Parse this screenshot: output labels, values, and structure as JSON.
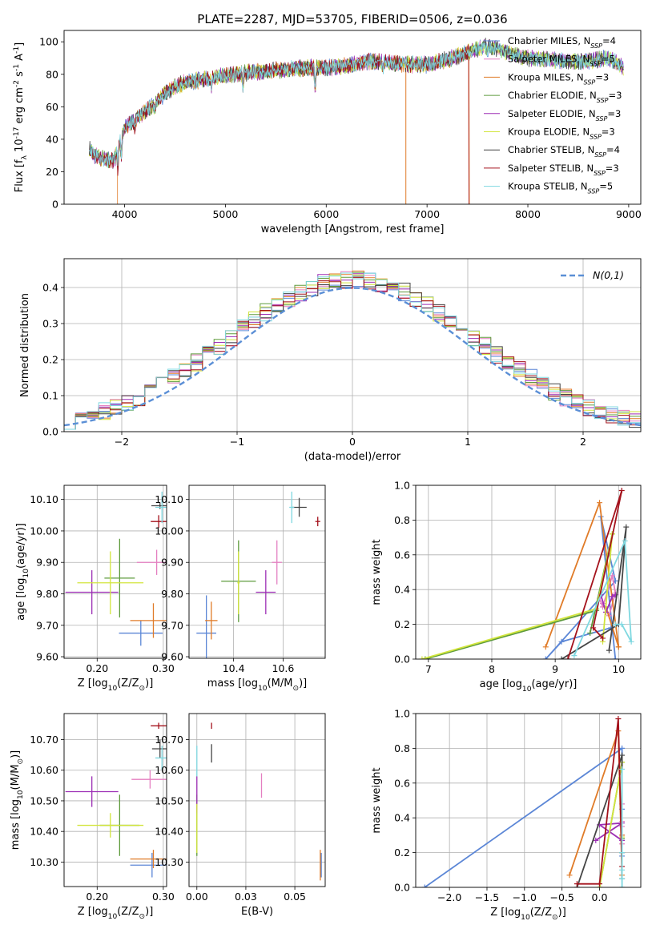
{
  "figure": {
    "title": "PLATE=2287, MJD=53705, FIBERID=0506, z=0.036"
  },
  "colors": {
    "Chabrier MILES": "#5b86d6",
    "Salpeter MILES": "#e47fc1",
    "Kroupa MILES": "#e07b28",
    "Chabrier ELODIE": "#5e9b3c",
    "Salpeter ELODIE": "#9d2fb5",
    "Kroupa ELODIE": "#d2e53c",
    "Chabrier STELIB": "#454545",
    "Salpeter STELIB": "#a4121c",
    "Kroupa STELIB": "#7fd8e0",
    "normal": "#5b8fd6"
  },
  "chart_data": [
    {
      "id": "spectrum",
      "type": "line",
      "xlabel": "wavelength [Angstrom, rest frame]",
      "ylabel": "Flux [f_λ 10^-17 erg cm^-2 s^-1 A^-1]",
      "xlim": [
        3400,
        9120
      ],
      "ylim": [
        0,
        107
      ],
      "xticks": [
        4000,
        5000,
        6000,
        7000,
        8000,
        9000
      ],
      "yticks": [
        0,
        20,
        40,
        60,
        80,
        100
      ],
      "grid": false,
      "legend_position": "upper right",
      "continuum": {
        "x": [
          3650,
          3700,
          3800,
          3900,
          3950,
          4000,
          4100,
          4200,
          4300,
          4400,
          4500,
          4600,
          4800,
          5000,
          5200,
          5400,
          5600,
          5800,
          6000,
          6200,
          6400,
          6600,
          6800,
          7000,
          7200,
          7400,
          7600,
          7800,
          8000,
          8200,
          8400,
          8600,
          8800,
          8950
        ],
        "y": [
          35,
          30,
          28,
          27,
          38,
          47,
          52,
          57,
          62,
          68,
          72,
          75,
          77,
          79,
          81,
          82,
          83,
          84,
          84,
          85,
          88,
          87,
          86,
          86,
          89,
          93,
          98,
          93,
          90,
          89,
          88,
          88,
          90,
          84
        ]
      },
      "series": [
        {
          "name": "Chabrier MILES, N_SSP=4",
          "label_base": "Chabrier MILES, N",
          "sub": "SSP",
          "label_tail": "=4",
          "color_key": "Chabrier MILES"
        },
        {
          "name": "Salpeter MILES, N_SSP=5",
          "label_base": "Salpeter MILES, N",
          "sub": "SSP",
          "label_tail": "=5",
          "color_key": "Salpeter MILES"
        },
        {
          "name": "Kroupa MILES, N_SSP=3",
          "label_base": "Kroupa MILES, N",
          "sub": "SSP",
          "label_tail": "=3",
          "color_key": "Kroupa MILES"
        },
        {
          "name": "Chabrier ELODIE, N_SSP=3",
          "label_base": "Chabrier ELODIE, N",
          "sub": "SSP",
          "label_tail": "=3",
          "color_key": "Chabrier ELODIE"
        },
        {
          "name": "Salpeter ELODIE, N_SSP=3",
          "label_base": "Salpeter ELODIE, N",
          "sub": "SSP",
          "label_tail": "=3",
          "color_key": "Salpeter ELODIE"
        },
        {
          "name": "Kroupa ELODIE, N_SSP=3",
          "label_base": "Kroupa ELODIE, N",
          "sub": "SSP",
          "label_tail": "=3",
          "color_key": "Kroupa ELODIE"
        },
        {
          "name": "Chabrier STELIB, N_SSP=4",
          "label_base": "Chabrier STELIB, N",
          "sub": "SSP",
          "label_tail": "=4",
          "color_key": "Chabrier STELIB"
        },
        {
          "name": "Salpeter STELIB, N_SSP=3",
          "label_base": "Salpeter STELIB, N",
          "sub": "SSP",
          "label_tail": "=3",
          "color_key": "Salpeter STELIB"
        },
        {
          "name": "Kroupa STELIB, N_SSP=5",
          "label_base": "Kroupa STELIB, N",
          "sub": "SSP",
          "label_tail": "=5",
          "color_key": "Kroupa STELIB"
        }
      ],
      "range_ends": [
        {
          "color_key": "Kroupa MILES",
          "start": 3930,
          "end": 7420,
          "sharp_drop_at": [
            6790
          ]
        },
        {
          "color_key": "Salpeter STELIB",
          "start": 3650,
          "end": 7415,
          "sharp_drop_at": []
        },
        {
          "color_key": "Chabrier STELIB",
          "start": 3650,
          "end": 8950,
          "sharp_drop_at": []
        }
      ]
    },
    {
      "id": "residuals",
      "type": "histogram",
      "xlabel": "(data-model)/error",
      "ylabel": "Normed distribution",
      "xlim": [
        -2.5,
        2.5
      ],
      "ylim": [
        0,
        0.48
      ],
      "xticks": [
        -2,
        -1,
        0,
        1,
        2
      ],
      "yticks": [
        0.0,
        0.1,
        0.2,
        0.3,
        0.4
      ],
      "grid": true,
      "legend_position": "upper right",
      "reference_label": "N(0,1)",
      "bin_width": 0.1,
      "series_keys": [
        "Chabrier MILES",
        "Salpeter MILES",
        "Kroupa MILES",
        "Chabrier ELODIE",
        "Salpeter ELODIE",
        "Kroupa ELODIE",
        "Chabrier STELIB",
        "Salpeter STELIB",
        "Kroupa STELIB"
      ]
    },
    {
      "id": "age-vs-Z",
      "type": "scatter",
      "xlabel": "Z [log10(Z/Z⊙)]",
      "ylabel": "age  [log10(age/yr)]",
      "xlim": [
        0.15,
        0.305
      ],
      "ylim": [
        9.595,
        10.145
      ],
      "xticks": [
        0.2,
        0.3
      ],
      "yticks": [
        9.6,
        9.7,
        9.8,
        9.9,
        10.0,
        10.1
      ],
      "grid": true,
      "points": [
        {
          "color_key": "Chabrier MILES",
          "x": 0.266,
          "y": 9.675,
          "xerr": 0.033,
          "yerr": 0.04
        },
        {
          "color_key": "Salpeter MILES",
          "x": 0.29,
          "y": 9.9,
          "xerr": 0.03,
          "yerr": 0.04
        },
        {
          "color_key": "Kroupa MILES",
          "x": 0.285,
          "y": 9.715,
          "xerr": 0.035,
          "yerr": 0.055
        },
        {
          "color_key": "Chabrier ELODIE",
          "x": 0.234,
          "y": 9.85,
          "xerr": 0.023,
          "yerr": 0.125
        },
        {
          "color_key": "Salpeter ELODIE",
          "x": 0.192,
          "y": 9.805,
          "xerr": 0.04,
          "yerr": 0.07
        },
        {
          "color_key": "Kroupa ELODIE",
          "x": 0.22,
          "y": 9.835,
          "xerr": 0.05,
          "yerr": 0.1
        },
        {
          "color_key": "Chabrier STELIB",
          "x": 0.295,
          "y": 10.08,
          "xerr": 0.013,
          "yerr": 0.01
        },
        {
          "color_key": "Salpeter STELIB",
          "x": 0.293,
          "y": 10.03,
          "xerr": 0.012,
          "yerr": 0.02
        },
        {
          "color_key": "Kroupa STELIB",
          "x": 0.298,
          "y": 10.075,
          "xerr": 0.01,
          "yerr": 0.05
        }
      ]
    },
    {
      "id": "age-vs-mass",
      "type": "scatter",
      "xlabel": "mass [log10(M/M⊙)]",
      "ylabel": "",
      "xlim": [
        10.22,
        10.77
      ],
      "ylim": [
        9.595,
        10.145
      ],
      "xticks": [
        10.4,
        10.6
      ],
      "yticks": [
        9.6,
        9.7,
        9.8,
        9.9,
        10.0,
        10.1
      ],
      "grid": true,
      "points": [
        {
          "color_key": "Chabrier MILES",
          "x": 10.29,
          "y": 9.675,
          "xerr": 0.04,
          "yerr": 0.12
        },
        {
          "color_key": "Salpeter MILES",
          "x": 10.575,
          "y": 9.9,
          "xerr": 0.02,
          "yerr": 0.07
        },
        {
          "color_key": "Kroupa MILES",
          "x": 10.31,
          "y": 9.715,
          "xerr": 0.025,
          "yerr": 0.06
        },
        {
          "color_key": "Chabrier ELODIE",
          "x": 10.42,
          "y": 9.84,
          "xerr": 0.07,
          "yerr": 0.13
        },
        {
          "color_key": "Salpeter ELODIE",
          "x": 10.53,
          "y": 9.805,
          "xerr": 0.04,
          "yerr": 0.07
        },
        {
          "color_key": "Kroupa ELODIE",
          "x": 10.42,
          "y": 9.835,
          "xerr": 0.005,
          "yerr": 0.1
        },
        {
          "color_key": "Chabrier STELIB",
          "x": 10.665,
          "y": 10.075,
          "xerr": 0.03,
          "yerr": 0.03
        },
        {
          "color_key": "Salpeter STELIB",
          "x": 10.74,
          "y": 10.03,
          "xerr": 0.01,
          "yerr": 0.015
        },
        {
          "color_key": "Kroupa STELIB",
          "x": 10.635,
          "y": 10.075,
          "xerr": 0.01,
          "yerr": 0.05
        }
      ]
    },
    {
      "id": "weight-vs-age",
      "type": "line",
      "xlabel": "age  [log10(age/yr)]",
      "ylabel": "mass weight",
      "xlim": [
        6.8,
        10.35
      ],
      "ylim": [
        0,
        1.0
      ],
      "xticks": [
        7,
        8,
        9,
        10
      ],
      "yticks": [
        0.0,
        0.2,
        0.4,
        0.6,
        0.8,
        1.0
      ],
      "grid": true,
      "series": [
        {
          "color_key": "Chabrier MILES",
          "x": [
            9.95,
            9.72,
            9.95,
            8.85,
            9.1,
            9.88
          ],
          "y": [
            0.0,
            0.82,
            0.45,
            0.0,
            0.1,
            0.18
          ]
        },
        {
          "color_key": "Salpeter MILES",
          "x": [
            9.7,
            9.75,
            9.9,
            9.95,
            9.85,
            9.75
          ],
          "y": [
            0.35,
            0.3,
            0.48,
            0.38,
            0.25,
            0.32
          ]
        },
        {
          "color_key": "Kroupa MILES",
          "x": [
            8.85,
            9.7,
            10.0,
            10.0,
            9.8
          ],
          "y": [
            0.07,
            0.9,
            0.07,
            0.07,
            0.3
          ]
        },
        {
          "color_key": "Chabrier ELODIE",
          "x": [
            6.95,
            9.65,
            9.9,
            9.55
          ],
          "y": [
            0.0,
            0.28,
            0.72,
            0.15
          ]
        },
        {
          "color_key": "Salpeter ELODIE",
          "x": [
            9.72,
            9.8,
            9.9,
            9.95
          ],
          "y": [
            0.37,
            0.27,
            0.36,
            0.37
          ]
        },
        {
          "color_key": "Kroupa ELODIE",
          "x": [
            6.9,
            9.65,
            9.9,
            9.75
          ],
          "y": [
            0.0,
            0.29,
            0.72,
            0.1
          ]
        },
        {
          "color_key": "Chabrier STELIB",
          "x": [
            9.1,
            10.0,
            10.12,
            9.85
          ],
          "y": [
            0.0,
            0.2,
            0.76,
            0.05
          ]
        },
        {
          "color_key": "Salpeter STELIB",
          "x": [
            9.2,
            10.05,
            9.6,
            9.75
          ],
          "y": [
            0.0,
            0.97,
            0.18,
            0.12
          ]
        },
        {
          "color_key": "Kroupa STELIB",
          "x": [
            9.3,
            10.1,
            10.2,
            10.05,
            9.95
          ],
          "y": [
            0.02,
            0.68,
            0.1,
            0.2,
            0.2
          ]
        }
      ]
    },
    {
      "id": "mass-vs-Z",
      "type": "scatter",
      "xlabel": "Z [log10(Z/Z⊙)]",
      "ylabel": "mass [log10(M/M⊙)]",
      "xlim": [
        0.15,
        0.305
      ],
      "ylim": [
        10.22,
        10.785
      ],
      "xticks": [
        0.2,
        0.3
      ],
      "yticks": [
        10.3,
        10.4,
        10.5,
        10.6,
        10.7
      ],
      "grid": true,
      "points": [
        {
          "color_key": "Chabrier MILES",
          "x": 0.283,
          "y": 10.29,
          "xerr": 0.033,
          "yerr": 0.04
        },
        {
          "color_key": "Salpeter MILES",
          "x": 0.28,
          "y": 10.57,
          "xerr": 0.028,
          "yerr": 0.03
        },
        {
          "color_key": "Kroupa MILES",
          "x": 0.285,
          "y": 10.31,
          "xerr": 0.035,
          "yerr": 0.03
        },
        {
          "color_key": "Chabrier ELODIE",
          "x": 0.234,
          "y": 10.42,
          "xerr": 0.03,
          "yerr": 0.1
        },
        {
          "color_key": "Salpeter ELODIE",
          "x": 0.192,
          "y": 10.53,
          "xerr": 0.04,
          "yerr": 0.05
        },
        {
          "color_key": "Kroupa ELODIE",
          "x": 0.22,
          "y": 10.42,
          "xerr": 0.05,
          "yerr": 0.04
        },
        {
          "color_key": "Chabrier STELIB",
          "x": 0.295,
          "y": 10.67,
          "xerr": 0.012,
          "yerr": 0.03
        },
        {
          "color_key": "Salpeter STELIB",
          "x": 0.293,
          "y": 10.745,
          "xerr": 0.012,
          "yerr": 0.01
        },
        {
          "color_key": "Kroupa STELIB",
          "x": 0.298,
          "y": 10.64,
          "xerr": 0.01,
          "yerr": 0.04
        }
      ]
    },
    {
      "id": "mass-vs-EBV",
      "type": "scatter",
      "xlabel": "E(B-V)",
      "ylabel": "",
      "xlim": [
        -0.004,
        0.0655
      ],
      "ylim": [
        10.22,
        10.785
      ],
      "xticks": [
        0.0,
        0.025,
        0.05
      ],
      "yticks": [
        10.3,
        10.4,
        10.5,
        10.6,
        10.7
      ],
      "grid": true,
      "points": [
        {
          "color_key": "Chabrier MILES",
          "x": 0.0635,
          "y": 10.29,
          "xerr": 0.0,
          "yerr": 0.04
        },
        {
          "color_key": "Salpeter MILES",
          "x": 0.033,
          "y": 10.55,
          "xerr": 0.0,
          "yerr": 0.04
        },
        {
          "color_key": "Kroupa MILES",
          "x": 0.063,
          "y": 10.29,
          "xerr": 0.0,
          "yerr": 0.05
        },
        {
          "color_key": "Chabrier ELODIE",
          "x": 0.0,
          "y": 10.42,
          "xerr": 0.0,
          "yerr": 0.1
        },
        {
          "color_key": "Salpeter ELODIE",
          "x": 0.0,
          "y": 10.52,
          "xerr": 0.0,
          "yerr": 0.06
        },
        {
          "color_key": "Kroupa ELODIE",
          "x": 0.0,
          "y": 10.41,
          "xerr": 0.0,
          "yerr": 0.08
        },
        {
          "color_key": "Chabrier STELIB",
          "x": 0.0075,
          "y": 10.655,
          "xerr": 0.0,
          "yerr": 0.03
        },
        {
          "color_key": "Salpeter STELIB",
          "x": 0.0075,
          "y": 10.745,
          "xerr": 0.0,
          "yerr": 0.01
        },
        {
          "color_key": "Kroupa STELIB",
          "x": 0.0,
          "y": 10.63,
          "xerr": 0.0,
          "yerr": 0.05
        }
      ]
    },
    {
      "id": "weight-vs-Z",
      "type": "line",
      "xlabel": "Z [log10(Z/Z⊙)]",
      "ylabel": "mass weight",
      "xlim": [
        -2.45,
        0.55
      ],
      "ylim": [
        0,
        1.0
      ],
      "xticks": [
        -2.0,
        -1.5,
        -1.0,
        -0.5,
        0.0
      ],
      "yticks": [
        0.0,
        0.2,
        0.4,
        0.6,
        0.8,
        1.0
      ],
      "grid": true,
      "series": [
        {
          "color_key": "Chabrier MILES",
          "x": [
            -2.33,
            0.3,
            0.3,
            0.3
          ],
          "y": [
            0.0,
            0.8,
            0.45,
            0.18
          ]
        },
        {
          "color_key": "Salpeter MILES",
          "x": [
            0.3,
            0.3,
            0.3,
            0.3,
            0.3
          ],
          "y": [
            0.35,
            0.3,
            0.48,
            0.38,
            0.25
          ]
        },
        {
          "color_key": "Kroupa MILES",
          "x": [
            -0.4,
            0.25,
            0.3,
            0.3
          ],
          "y": [
            0.07,
            0.9,
            0.07,
            0.3
          ]
        },
        {
          "color_key": "Chabrier ELODIE",
          "x": [
            0.0,
            0.3,
            0.3
          ],
          "y": [
            0.0,
            0.72,
            0.28
          ]
        },
        {
          "color_key": "Salpeter ELODIE",
          "x": [
            -0.05,
            0.3,
            0.0,
            0.3
          ],
          "y": [
            0.27,
            0.37,
            0.36,
            0.27
          ]
        },
        {
          "color_key": "Kroupa ELODIE",
          "x": [
            0.0,
            0.3,
            0.3
          ],
          "y": [
            0.0,
            0.72,
            0.29
          ]
        },
        {
          "color_key": "Chabrier STELIB",
          "x": [
            -0.3,
            0.3,
            0.3,
            0.3
          ],
          "y": [
            0.0,
            0.76,
            0.2,
            0.05
          ]
        },
        {
          "color_key": "Salpeter STELIB",
          "x": [
            -0.3,
            0.0,
            0.25,
            0.3
          ],
          "y": [
            0.02,
            0.02,
            0.97,
            0.12
          ]
        },
        {
          "color_key": "Kroupa STELIB",
          "x": [
            0.3,
            0.3,
            0.3,
            0.3,
            0.3
          ],
          "y": [
            0.0,
            0.68,
            0.1,
            0.2,
            0.05
          ]
        }
      ]
    }
  ]
}
